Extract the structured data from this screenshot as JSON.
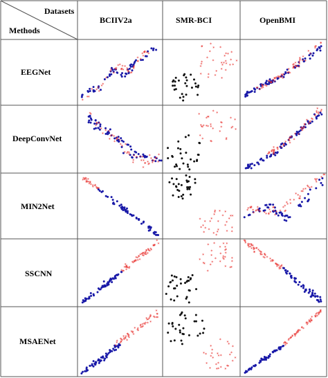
{
  "header": {
    "corner_top": "Datasets",
    "corner_bottom": "Methods",
    "columns": [
      "BCIIV2a",
      "SMR-BCI",
      "OpenBMI"
    ]
  },
  "rows": [
    {
      "method": "EEGNet"
    },
    {
      "method": "DeepConvNet"
    },
    {
      "method": "MIN2Net"
    },
    {
      "method": "SSCNN"
    },
    {
      "method": "MSAENet"
    }
  ],
  "colors": {
    "class_a": "#1a1aa8",
    "class_b": "#e8322f",
    "class_c": "#111111",
    "grid": "#555555"
  }
}
